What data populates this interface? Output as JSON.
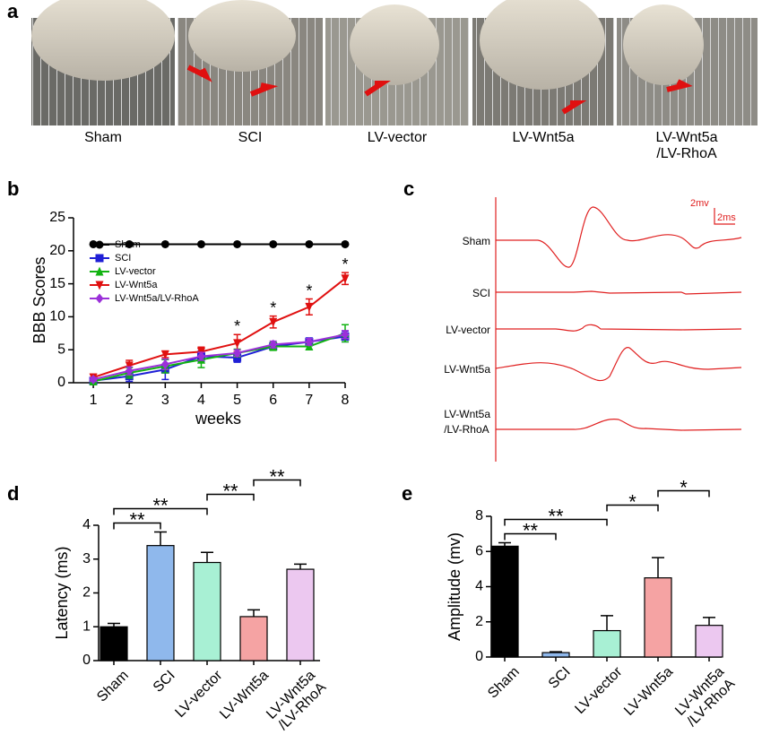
{
  "photos": {
    "label": "a",
    "captions": [
      "Sham",
      "SCI",
      "LV-vector",
      "LV-Wnt5a",
      "LV-Wnt5a\n/LV-RhoA"
    ]
  },
  "traces": {
    "label": "c",
    "names": [
      "Sham",
      "SCI",
      "LV-vector",
      "LV-Wnt5a",
      "LV-Wnt5a\n/LV-RhoA"
    ],
    "scale_labels": [
      "2mv",
      "2ms"
    ],
    "color": "#e02020"
  },
  "chart_data": [
    {
      "type": "line",
      "label": "b",
      "ylabel": "BBB Scores",
      "xlabel": "weeks",
      "x": [
        1,
        2,
        3,
        4,
        5,
        6,
        7,
        8
      ],
      "xlim": [
        0.45,
        8
      ],
      "xticks": [
        1,
        2,
        3,
        4,
        5,
        6,
        7,
        8
      ],
      "ylim": [
        0,
        25
      ],
      "yticks": [
        0,
        5,
        10,
        15,
        20,
        25
      ],
      "legend": "upper-left",
      "series": [
        {
          "name": "Sham",
          "color": "#000000",
          "marker": "circle",
          "values": [
            21,
            21,
            21,
            21,
            21,
            21,
            21,
            21
          ],
          "errors": [
            0,
            0,
            0,
            0,
            0,
            0,
            0,
            0
          ]
        },
        {
          "name": "SCI",
          "color": "#1f1fd6",
          "marker": "square",
          "values": [
            0.3,
            1.0,
            2.0,
            4.0,
            3.8,
            5.5,
            6.2,
            7.0
          ],
          "errors": [
            0.3,
            0.8,
            1.5,
            0.8,
            0.7,
            0.5,
            0.6,
            0.8
          ]
        },
        {
          "name": "LV-vector",
          "color": "#12b312",
          "marker": "triangle",
          "values": [
            0.2,
            1.5,
            2.5,
            3.5,
            4.5,
            5.5,
            5.5,
            7.5
          ],
          "errors": [
            0.2,
            0.8,
            1.0,
            1.2,
            0.6,
            0.6,
            0.5,
            1.3
          ]
        },
        {
          "name": "LV-Wnt5a",
          "color": "#e01010",
          "marker": "triangle-down",
          "values": [
            0.8,
            2.6,
            4.3,
            4.7,
            6.0,
            9.2,
            11.5,
            15.8
          ],
          "errors": [
            0.5,
            0.8,
            0.5,
            0.7,
            1.3,
            0.9,
            1.2,
            0.9
          ]
        },
        {
          "name": "LV-Wnt5a/LV-RhoA",
          "color": "#9b30d9",
          "marker": "diamond",
          "values": [
            0.5,
            1.8,
            2.8,
            4.0,
            4.5,
            5.8,
            6.2,
            7.3
          ],
          "errors": [
            0.3,
            0.6,
            0.8,
            0.6,
            0.5,
            0.5,
            0.5,
            0.6
          ]
        }
      ],
      "annotations": [
        {
          "x": 5,
          "text": "*"
        },
        {
          "x": 6,
          "text": "*"
        },
        {
          "x": 7,
          "text": "*"
        },
        {
          "x": 8,
          "text": "*"
        }
      ]
    },
    {
      "type": "bar",
      "label": "d",
      "ylabel": "Latency (ms)",
      "categories": [
        "Sham",
        "SCI",
        "LV-vector",
        "LV-Wnt5a",
        "LV-Wnt5a\n/LV-RhoA"
      ],
      "values": [
        1.0,
        3.4,
        2.9,
        1.3,
        2.7
      ],
      "errors": [
        0.1,
        0.4,
        0.3,
        0.2,
        0.15
      ],
      "colors": [
        "#000000",
        "#8fb8ec",
        "#a8f0d4",
        "#f5a3a3",
        "#ecc8f0"
      ],
      "ylim": [
        0,
        4
      ],
      "yticks": [
        0,
        1,
        2,
        3,
        4
      ],
      "significance": [
        {
          "between": [
            "Sham",
            "SCI"
          ],
          "label": "**"
        },
        {
          "between": [
            "Sham",
            "LV-vector"
          ],
          "label": "**"
        },
        {
          "between": [
            "LV-vector",
            "LV-Wnt5a"
          ],
          "label": "**"
        },
        {
          "between": [
            "LV-Wnt5a",
            "LV-Wnt5a\n/LV-RhoA"
          ],
          "label": "**"
        }
      ]
    },
    {
      "type": "bar",
      "label": "e",
      "ylabel": "Amplitude (mv)",
      "categories": [
        "Sham",
        "SCI",
        "LV-vector",
        "LV-Wnt5a",
        "LV-Wnt5a\n/LV-RhoA"
      ],
      "values": [
        6.3,
        0.25,
        1.5,
        4.5,
        1.8
      ],
      "errors": [
        0.2,
        0.05,
        0.85,
        1.15,
        0.45
      ],
      "colors": [
        "#000000",
        "#8fb8ec",
        "#a8f0d4",
        "#f5a3a3",
        "#ecc8f0"
      ],
      "ylim": [
        0,
        8
      ],
      "yticks": [
        0,
        2,
        4,
        6,
        8
      ],
      "significance": [
        {
          "between": [
            "Sham",
            "SCI"
          ],
          "label": "**"
        },
        {
          "between": [
            "Sham",
            "LV-vector"
          ],
          "label": "**"
        },
        {
          "between": [
            "LV-vector",
            "LV-Wnt5a"
          ],
          "label": "*"
        },
        {
          "between": [
            "LV-Wnt5a",
            "LV-Wnt5a\n/LV-RhoA"
          ],
          "label": "*"
        }
      ]
    }
  ]
}
